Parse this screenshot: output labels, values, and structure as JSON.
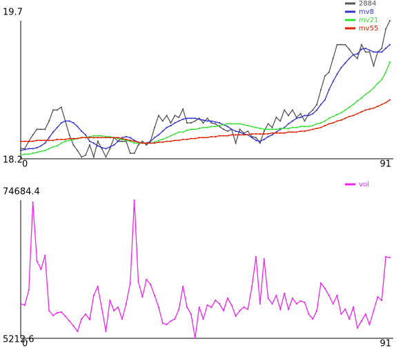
{
  "chart_data": [
    {
      "type": "line",
      "x": [
        0,
        1,
        2,
        3,
        4,
        5,
        6,
        7,
        8,
        9,
        10,
        11,
        12,
        13,
        14,
        15,
        16,
        17,
        18,
        19,
        20,
        21,
        22,
        23,
        24,
        25,
        26,
        27,
        28,
        29,
        30,
        31,
        32,
        33,
        34,
        35,
        36,
        37,
        38,
        39,
        40,
        41,
        42,
        43,
        44,
        45,
        46,
        47,
        48,
        49,
        50,
        51,
        52,
        53,
        54,
        55,
        56,
        57,
        58,
        59,
        60,
        61,
        62,
        63,
        64,
        65,
        66,
        67,
        68,
        69,
        70,
        71,
        72,
        73,
        74,
        75,
        76,
        77,
        78,
        79,
        80,
        81,
        82,
        83,
        84,
        85,
        86,
        87,
        88,
        89,
        90,
        91
      ],
      "xlim": [
        0,
        91
      ],
      "xticks": [
        0,
        91
      ],
      "ylim": [
        18.2,
        19.7
      ],
      "yticks": [
        18.2,
        19.7
      ],
      "series": [
        {
          "name": "2884",
          "color": "#555555",
          "values": [
            18.31,
            18.31,
            18.39,
            18.46,
            18.52,
            18.52,
            18.52,
            18.61,
            18.73,
            18.73,
            18.76,
            18.61,
            18.46,
            18.35,
            18.29,
            18.22,
            18.24,
            18.35,
            18.22,
            18.39,
            18.31,
            18.22,
            18.31,
            18.43,
            18.39,
            18.39,
            18.39,
            18.26,
            18.26,
            18.35,
            18.39,
            18.35,
            18.39,
            18.54,
            18.67,
            18.61,
            18.67,
            18.59,
            18.67,
            18.65,
            18.74,
            18.59,
            18.59,
            18.61,
            18.64,
            18.59,
            18.64,
            18.59,
            18.58,
            18.55,
            18.52,
            18.5,
            18.52,
            18.37,
            18.52,
            18.48,
            18.5,
            18.44,
            18.43,
            18.37,
            18.5,
            18.58,
            18.54,
            18.65,
            18.61,
            18.73,
            18.67,
            18.73,
            18.65,
            18.69,
            18.61,
            18.69,
            18.73,
            18.79,
            18.95,
            19.1,
            19.14,
            19.29,
            19.44,
            19.44,
            19.44,
            19.39,
            19.33,
            19.29,
            19.44,
            19.36,
            19.36,
            19.21,
            19.36,
            19.4,
            19.61,
            19.7
          ]
        },
        {
          "name": "mv8",
          "color": "#3333cc",
          "values": [
            18.29,
            18.3,
            18.31,
            18.31,
            18.32,
            18.34,
            18.37,
            18.43,
            18.49,
            18.54,
            18.59,
            18.61,
            18.61,
            18.59,
            18.55,
            18.5,
            18.46,
            18.39,
            18.37,
            18.34,
            18.32,
            18.31,
            18.33,
            18.35,
            18.39,
            18.43,
            18.44,
            18.43,
            18.4,
            18.38,
            18.37,
            18.37,
            18.39,
            18.43,
            18.46,
            18.5,
            18.54,
            18.56,
            18.59,
            18.61,
            18.63,
            18.64,
            18.64,
            18.64,
            18.63,
            18.62,
            18.61,
            18.61,
            18.6,
            18.59,
            18.57,
            18.55,
            18.52,
            18.5,
            18.49,
            18.47,
            18.46,
            18.43,
            18.4,
            18.39,
            18.41,
            18.44,
            18.46,
            18.49,
            18.52,
            18.54,
            18.58,
            18.61,
            18.64,
            18.65,
            18.67,
            18.67,
            18.69,
            18.73,
            18.79,
            18.84,
            18.95,
            19.04,
            19.12,
            19.19,
            19.24,
            19.29,
            19.33,
            19.34,
            19.39,
            19.4,
            19.38,
            19.36,
            19.36,
            19.36,
            19.4,
            19.44
          ]
        },
        {
          "name": "mv21",
          "color": "#33dd33",
          "values": [
            18.24,
            18.25,
            18.25,
            18.26,
            18.27,
            18.28,
            18.29,
            18.31,
            18.33,
            18.34,
            18.37,
            18.39,
            18.4,
            18.41,
            18.42,
            18.43,
            18.43,
            18.44,
            18.45,
            18.45,
            18.45,
            18.44,
            18.44,
            18.43,
            18.42,
            18.41,
            18.4,
            18.39,
            18.37,
            18.37,
            18.37,
            18.37,
            18.37,
            18.38,
            18.4,
            18.41,
            18.43,
            18.45,
            18.47,
            18.49,
            18.49,
            18.51,
            18.52,
            18.52,
            18.53,
            18.54,
            18.54,
            18.55,
            18.55,
            18.56,
            18.57,
            18.58,
            18.58,
            18.58,
            18.58,
            18.57,
            18.56,
            18.55,
            18.54,
            18.53,
            18.52,
            18.52,
            18.52,
            18.52,
            18.53,
            18.53,
            18.53,
            18.54,
            18.54,
            18.55,
            18.55,
            18.55,
            18.56,
            18.58,
            18.59,
            18.61,
            18.64,
            18.66,
            18.68,
            18.7,
            18.73,
            18.76,
            18.79,
            18.83,
            18.86,
            18.9,
            18.93,
            18.97,
            19.02,
            19.06,
            19.14,
            19.25
          ]
        },
        {
          "name": "mv55",
          "color": "#dd2200",
          "values": [
            18.39,
            18.39,
            18.39,
            18.39,
            18.4,
            18.4,
            18.4,
            18.4,
            18.4,
            18.41,
            18.41,
            18.41,
            18.42,
            18.42,
            18.42,
            18.43,
            18.43,
            18.43,
            18.43,
            18.43,
            18.43,
            18.43,
            18.43,
            18.43,
            18.43,
            18.42,
            18.41,
            18.4,
            18.39,
            18.38,
            18.37,
            18.37,
            18.37,
            18.37,
            18.38,
            18.38,
            18.39,
            18.39,
            18.4,
            18.4,
            18.41,
            18.41,
            18.42,
            18.42,
            18.43,
            18.43,
            18.43,
            18.44,
            18.44,
            18.45,
            18.45,
            18.45,
            18.46,
            18.46,
            18.46,
            18.46,
            18.46,
            18.47,
            18.47,
            18.47,
            18.47,
            18.47,
            18.48,
            18.48,
            18.48,
            18.48,
            18.49,
            18.49,
            18.49,
            18.5,
            18.5,
            18.51,
            18.52,
            18.53,
            18.54,
            18.56,
            18.58,
            18.59,
            18.61,
            18.62,
            18.64,
            18.66,
            18.67,
            18.69,
            18.71,
            18.73,
            18.74,
            18.75,
            18.77,
            18.79,
            18.81,
            18.84
          ]
        }
      ]
    },
    {
      "type": "line",
      "x": [
        0,
        1,
        2,
        3,
        4,
        5,
        6,
        7,
        8,
        9,
        10,
        11,
        12,
        13,
        14,
        15,
        16,
        17,
        18,
        19,
        20,
        21,
        22,
        23,
        24,
        25,
        26,
        27,
        28,
        29,
        30,
        31,
        32,
        33,
        34,
        35,
        36,
        37,
        38,
        39,
        40,
        41,
        42,
        43,
        44,
        45,
        46,
        47,
        48,
        49,
        50,
        51,
        52,
        53,
        54,
        55,
        56,
        57,
        58,
        59,
        60,
        61,
        62,
        63,
        64,
        65,
        66,
        67,
        68,
        69,
        70,
        71,
        72,
        73,
        74,
        75,
        76,
        77,
        78,
        79,
        80,
        81,
        82,
        83,
        84,
        85,
        86,
        87,
        88,
        89,
        90,
        91
      ],
      "xlim": [
        0,
        91
      ],
      "xticks": [
        0,
        91
      ],
      "ylim": [
        5212.6,
        74684.4
      ],
      "yticks": [
        5212.6,
        74684.4
      ],
      "series": [
        {
          "name": "vol",
          "color": "#ee22ee",
          "values": [
            22581,
            21886,
            29528,
            73643,
            44117,
            39949,
            46896,
            19107,
            16676,
            18065,
            18413,
            16329,
            13897,
            11465,
            8687,
            14939,
            17371,
            14592,
            26749,
            31265,
            20149,
            8687,
            24318,
            19107,
            20844,
            14939,
            22581,
            33002,
            74684.4,
            33697,
            26055,
            34739,
            32307,
            26749,
            20844,
            12855,
            12160,
            13897,
            14939,
            19802,
            31265,
            20844,
            17371,
            5212.6,
            20844,
            14939,
            21886,
            20844,
            24318,
            22581,
            19107,
            25360,
            21886,
            16329,
            19107,
            20844,
            19802,
            31265,
            46201,
            22581,
            45159,
            25360,
            22581,
            26749,
            19802,
            27791,
            19802,
            25360,
            22581,
            23970,
            23276,
            17371,
            14939,
            19107,
            33002,
            30223,
            26749,
            22581,
            26749,
            17371,
            19802,
            14939,
            20844,
            10423,
            13897,
            17371,
            12160,
            19107,
            26055,
            24318,
            46201,
            45854
          ]
        }
      ]
    }
  ]
}
